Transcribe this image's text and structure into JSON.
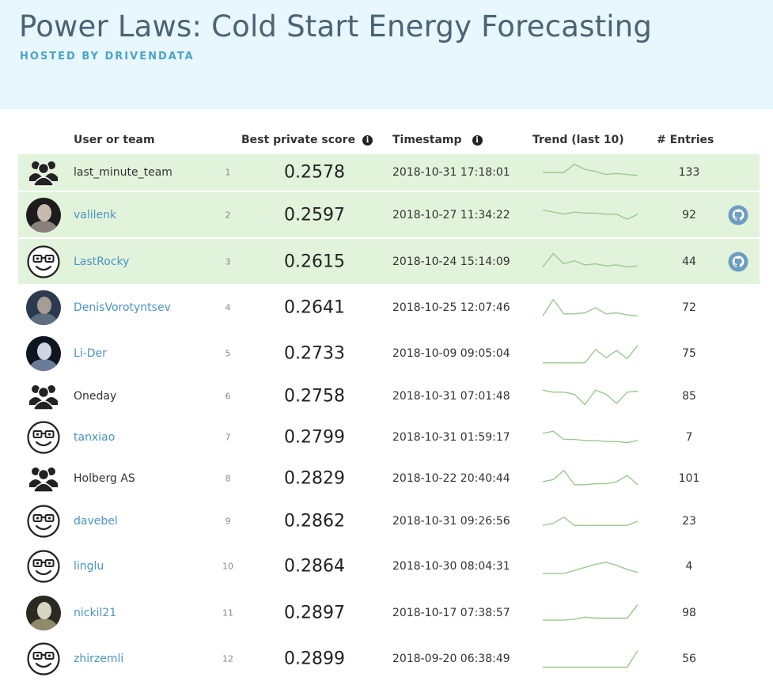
{
  "header": {
    "title": "Power Laws: Cold Start Energy Forecasting",
    "subtitle": "HOSTED BY DRIVENDATA"
  },
  "columns": {
    "user": "User or team",
    "score": "Best private score",
    "timestamp": "Timestamp",
    "trend": "Trend (last 10)",
    "entries": "# Entries"
  },
  "colors": {
    "hero_bg": "#e8f6fd",
    "highlight_bg": "#e2f3db",
    "link": "#4b94c4",
    "trend_line": "#9cc88f"
  },
  "rows": [
    {
      "rank": "1",
      "name": "last_minute_team",
      "avatar": "team-icon",
      "link": false,
      "score": "0.2578",
      "timestamp": "2018-10-31 17:18:01",
      "entries": "133",
      "github": false,
      "highlight": true,
      "trend": [
        0.5,
        0.5,
        0.5,
        0.1,
        0.35,
        0.45,
        0.6,
        0.55,
        0.6,
        0.65
      ]
    },
    {
      "rank": "2",
      "name": "valilenk",
      "avatar": "photo-valilenk",
      "link": true,
      "score": "0.2597",
      "timestamp": "2018-10-27 11:34:22",
      "entries": "92",
      "github": true,
      "highlight": true,
      "trend": [
        0.25,
        0.35,
        0.45,
        0.35,
        0.4,
        0.4,
        0.45,
        0.45,
        0.7,
        0.45
      ]
    },
    {
      "rank": "3",
      "name": "LastRocky",
      "avatar": "nerd-face-icon",
      "link": true,
      "score": "0.2615",
      "timestamp": "2018-10-24 15:14:09",
      "entries": "44",
      "github": true,
      "highlight": true,
      "trend": [
        0.75,
        0.1,
        0.6,
        0.45,
        0.65,
        0.6,
        0.7,
        0.65,
        0.75,
        0.7
      ]
    },
    {
      "rank": "4",
      "name": "DenisVorotyntsev",
      "avatar": "photo-denis",
      "link": true,
      "score": "0.2641",
      "timestamp": "2018-10-25 12:07:46",
      "entries": "72",
      "github": false,
      "highlight": false,
      "trend": [
        0.9,
        0.1,
        0.8,
        0.8,
        0.75,
        0.5,
        0.8,
        0.75,
        0.85,
        0.9
      ]
    },
    {
      "rank": "5",
      "name": "Li-Der",
      "avatar": "photo-lider",
      "link": true,
      "score": "0.2733",
      "timestamp": "2018-10-09 09:05:04",
      "entries": "75",
      "github": false,
      "highlight": false,
      "trend": [
        0.95,
        0.95,
        0.95,
        0.95,
        0.95,
        0.3,
        0.7,
        0.35,
        0.75,
        0.1
      ]
    },
    {
      "rank": "6",
      "name": "Oneday",
      "avatar": "team-icon",
      "link": false,
      "score": "0.2758",
      "timestamp": "2018-10-31 07:01:48",
      "entries": "85",
      "github": false,
      "highlight": false,
      "trend": [
        0.2,
        0.3,
        0.3,
        0.4,
        0.9,
        0.2,
        0.4,
        0.85,
        0.3,
        0.25
      ]
    },
    {
      "rank": "7",
      "name": "tanxiao",
      "avatar": "nerd-face-icon",
      "link": true,
      "score": "0.2799",
      "timestamp": "2018-10-31 01:59:17",
      "entries": "7",
      "github": false,
      "highlight": false,
      "trend": [
        0.3,
        0.2,
        0.6,
        0.6,
        0.65,
        0.65,
        0.7,
        0.7,
        0.75,
        0.65
      ]
    },
    {
      "rank": "8",
      "name": "Holberg AS",
      "avatar": "team-icon",
      "link": false,
      "score": "0.2829",
      "timestamp": "2018-10-22 20:40:44",
      "entries": "101",
      "github": false,
      "highlight": false,
      "trend": [
        0.65,
        0.55,
        0.1,
        0.8,
        0.8,
        0.75,
        0.75,
        0.65,
        0.35,
        0.8
      ]
    },
    {
      "rank": "9",
      "name": "davebel",
      "avatar": "nerd-face-icon",
      "link": true,
      "score": "0.2862",
      "timestamp": "2018-10-31 09:26:56",
      "entries": "23",
      "github": false,
      "highlight": false,
      "trend": [
        0.7,
        0.6,
        0.3,
        0.7,
        0.7,
        0.7,
        0.7,
        0.7,
        0.7,
        0.5
      ]
    },
    {
      "rank": "10",
      "name": "linglu",
      "avatar": "nerd-face-icon",
      "link": true,
      "score": "0.2864",
      "timestamp": "2018-10-30 08:04:31",
      "entries": "4",
      "github": false,
      "highlight": false,
      "trend": [
        0.85,
        0.85,
        0.85,
        0.7,
        0.55,
        0.4,
        0.3,
        0.45,
        0.65,
        0.8
      ]
    },
    {
      "rank": "11",
      "name": "nickil21",
      "avatar": "photo-nickil",
      "link": true,
      "score": "0.2897",
      "timestamp": "2018-10-17 07:38:57",
      "entries": "98",
      "github": false,
      "highlight": false,
      "trend": [
        0.85,
        0.85,
        0.85,
        0.8,
        0.7,
        0.75,
        0.75,
        0.75,
        0.75,
        0.1
      ]
    },
    {
      "rank": "12",
      "name": "zhirzemli",
      "avatar": "nerd-face-icon",
      "link": true,
      "score": "0.2899",
      "timestamp": "2018-09-20 06:38:49",
      "entries": "56",
      "github": false,
      "highlight": false,
      "trend": [
        0.9,
        0.9,
        0.9,
        0.9,
        0.9,
        0.9,
        0.9,
        0.9,
        0.9,
        0.1
      ]
    }
  ]
}
